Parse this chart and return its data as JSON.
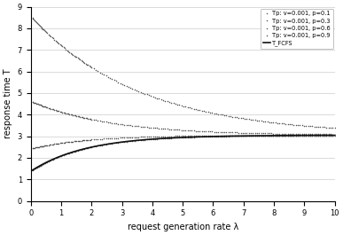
{
  "title": "",
  "xlabel": "request generation rate λ",
  "ylabel": "response time T",
  "xlim": [
    0,
    10.0
  ],
  "ylim": [
    0,
    9
  ],
  "xticks": [
    0.0,
    1.0,
    2.0,
    3.0,
    4.0,
    5.0,
    6.0,
    7.0,
    8.0,
    9.0,
    10.0
  ],
  "yticks": [
    0,
    1,
    2,
    3,
    4,
    5,
    6,
    7,
    8,
    9
  ],
  "v": 0.001,
  "p_values": [
    0.1,
    0.3,
    0.6,
    0.9
  ],
  "legend_labels": [
    "Tp: v=0.001, p=0.1",
    "Tp: v=0.001, p=0.3",
    "Tp: v=0.001, p=0.6",
    "Tp: v=0.001, p=0.9",
    "T_FCFS"
  ],
  "dot_color": "#555555",
  "fcfs_color": "#111111",
  "marker": ".",
  "markersize": 2.2,
  "linewidth_fcfs": 1.2,
  "background_color": "#ffffff",
  "grid_color": "#cccccc",
  "asymptote": 3.05,
  "fcfs_start": 1.38,
  "fcfs_tau": 0.55,
  "tp_starts": [
    8.55,
    4.62,
    2.42,
    1.38
  ],
  "tp_taus": [
    0.52,
    0.55,
    0.55,
    0.55
  ]
}
